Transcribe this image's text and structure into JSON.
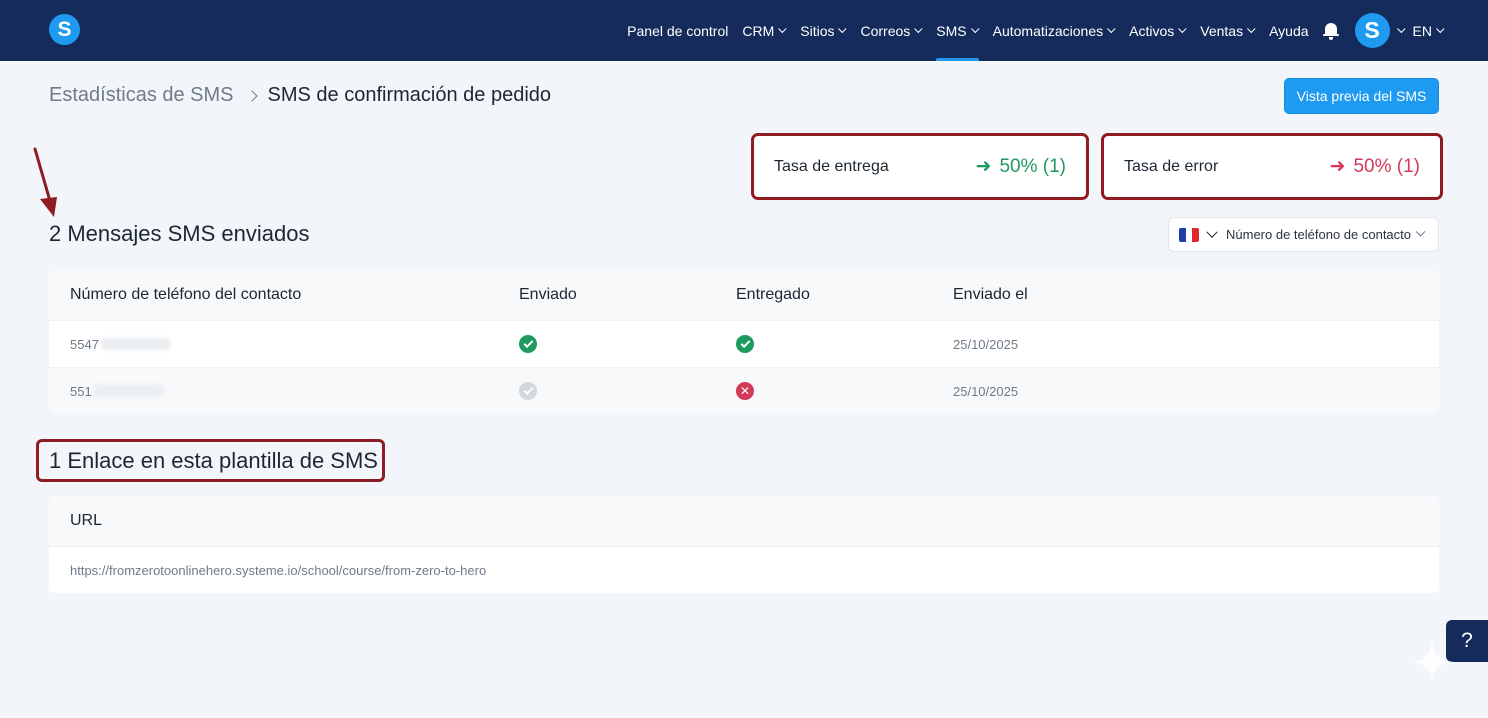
{
  "header": {
    "logo_letter": "S",
    "nav": [
      {
        "label": "Panel de control",
        "dropdown": false,
        "active": false
      },
      {
        "label": "CRM",
        "dropdown": true,
        "active": false
      },
      {
        "label": "Sitios",
        "dropdown": true,
        "active": false
      },
      {
        "label": "Correos",
        "dropdown": true,
        "active": false
      },
      {
        "label": "SMS",
        "dropdown": true,
        "active": true
      },
      {
        "label": "Automatizaciones",
        "dropdown": true,
        "active": false
      },
      {
        "label": "Activos",
        "dropdown": true,
        "active": false
      },
      {
        "label": "Ventas",
        "dropdown": true,
        "active": false
      },
      {
        "label": "Ayuda",
        "dropdown": false,
        "active": false
      }
    ],
    "avatar_letter": "S",
    "language": "EN"
  },
  "breadcrumb": {
    "parent": "Estadísticas de SMS",
    "current": "SMS de confirmación de pedido"
  },
  "preview_button": "Vista previa del SMS",
  "stats": {
    "delivery": {
      "label": "Tasa de entrega",
      "value": "50% (1)",
      "color": "#1f9a5e"
    },
    "error": {
      "label": "Tasa de error",
      "value": "50% (1)",
      "color": "#d33a57"
    }
  },
  "messages": {
    "title": "2 Mensajes SMS enviados",
    "filter_label": "Número de teléfono de contacto",
    "columns": [
      "Número de teléfono del contacto",
      "Enviado",
      "Entregado",
      "Enviado el"
    ],
    "rows": [
      {
        "phone_prefix": "5547",
        "sent": "check",
        "delivered": "check",
        "date": "25/10/2025"
      },
      {
        "phone_prefix": "551",
        "sent": "check-grey",
        "delivered": "error",
        "date": "25/10/2025"
      }
    ]
  },
  "links": {
    "title": "1 Enlace en esta plantilla de SMS",
    "column": "URL",
    "rows": [
      "https://fromzerotoonlinehero.systeme.io/school/course/from-zero-to-hero"
    ]
  },
  "help_label": "?"
}
